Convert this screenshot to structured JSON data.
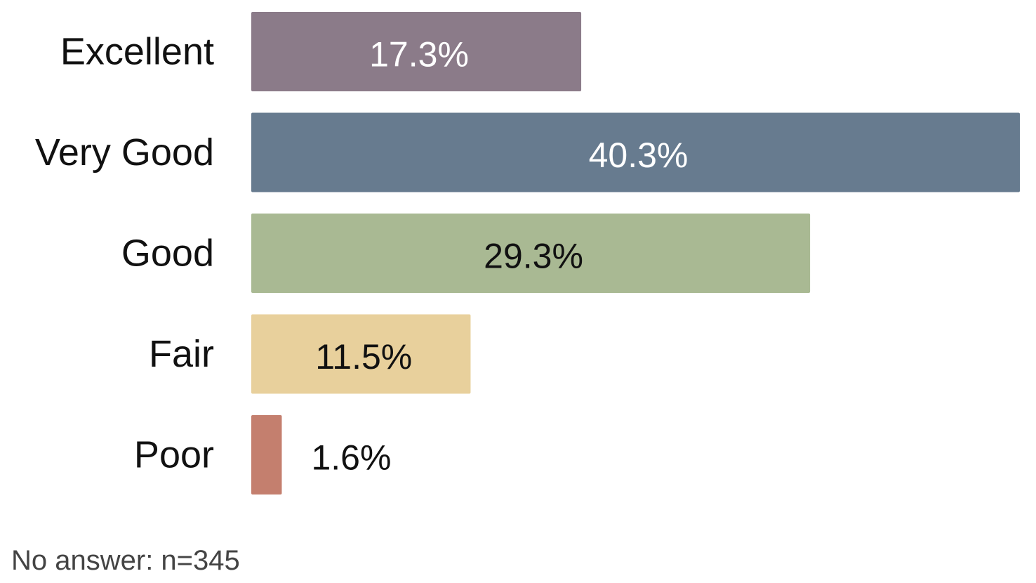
{
  "chart_data": {
    "type": "bar",
    "orientation": "horizontal",
    "categories": [
      "Excellent",
      "Very Good",
      "Good",
      "Fair",
      "Poor"
    ],
    "values": [
      17.3,
      40.3,
      29.3,
      11.5,
      1.6
    ],
    "value_labels": [
      "17.3%",
      "40.3%",
      "29.3%",
      "11.5%",
      "1.6%"
    ],
    "colors": [
      "#8b7b89",
      "#677b8f",
      "#a9b993",
      "#e8d09c",
      "#c47f6e"
    ],
    "label_colors": [
      "#ffffff",
      "#ffffff",
      "#111111",
      "#111111",
      "#111111"
    ],
    "xlim": [
      0,
      40.3
    ],
    "grid": false,
    "legend": "none"
  },
  "footnote": "No answer: n=345"
}
